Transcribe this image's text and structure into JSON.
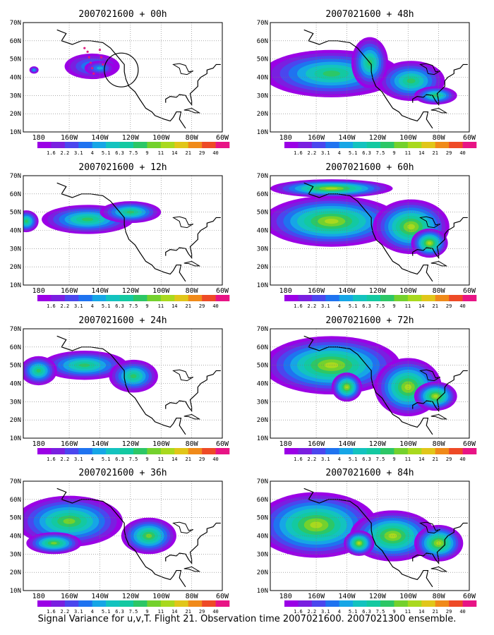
{
  "figure": {
    "caption": "Signal Variance for u,v,T. Flight 21. Observation time 2007021600. 2007021300 ensemble."
  },
  "axes": {
    "lat_labels": [
      "70N",
      "60N",
      "50N",
      "40N",
      "30N",
      "20N",
      "10N"
    ],
    "lon_labels": [
      "180",
      "160W",
      "140W",
      "120W",
      "100W",
      "80W",
      "60W"
    ]
  },
  "colorbar": {
    "levels": [
      "1.6",
      "2.2",
      "3.1",
      "4",
      "5.1",
      "6.3",
      "7.5",
      "9",
      "11",
      "14",
      "21",
      "29",
      "40"
    ],
    "colors": [
      "#9b00e6",
      "#7a1fe0",
      "#4b46ee",
      "#1f73f0",
      "#16a6e6",
      "#13c3bf",
      "#13c9a1",
      "#2cc766",
      "#74d12d",
      "#a9d91e",
      "#e1c619",
      "#f08a19",
      "#ee4a26",
      "#e81485"
    ]
  },
  "panels": [
    {
      "title": "2007021600 + 00h",
      "column": "left",
      "row": 0,
      "max_level": 5,
      "show_observation_track": true
    },
    {
      "title": "2007021600 + 48h",
      "column": "right",
      "row": 0,
      "max_level": 8
    },
    {
      "title": "2007021600 + 12h",
      "column": "left",
      "row": 1,
      "max_level": 8
    },
    {
      "title": "2007021600 + 60h",
      "column": "right",
      "row": 1,
      "max_level": 10
    },
    {
      "title": "2007021600 + 24h",
      "column": "left",
      "row": 2,
      "max_level": 8
    },
    {
      "title": "2007021600 + 72h",
      "column": "right",
      "row": 2,
      "max_level": 10
    },
    {
      "title": "2007021600 + 36h",
      "column": "left",
      "row": 3,
      "max_level": 9
    },
    {
      "title": "2007021600 + 84h",
      "column": "right",
      "row": 3,
      "max_level": 10
    }
  ]
}
